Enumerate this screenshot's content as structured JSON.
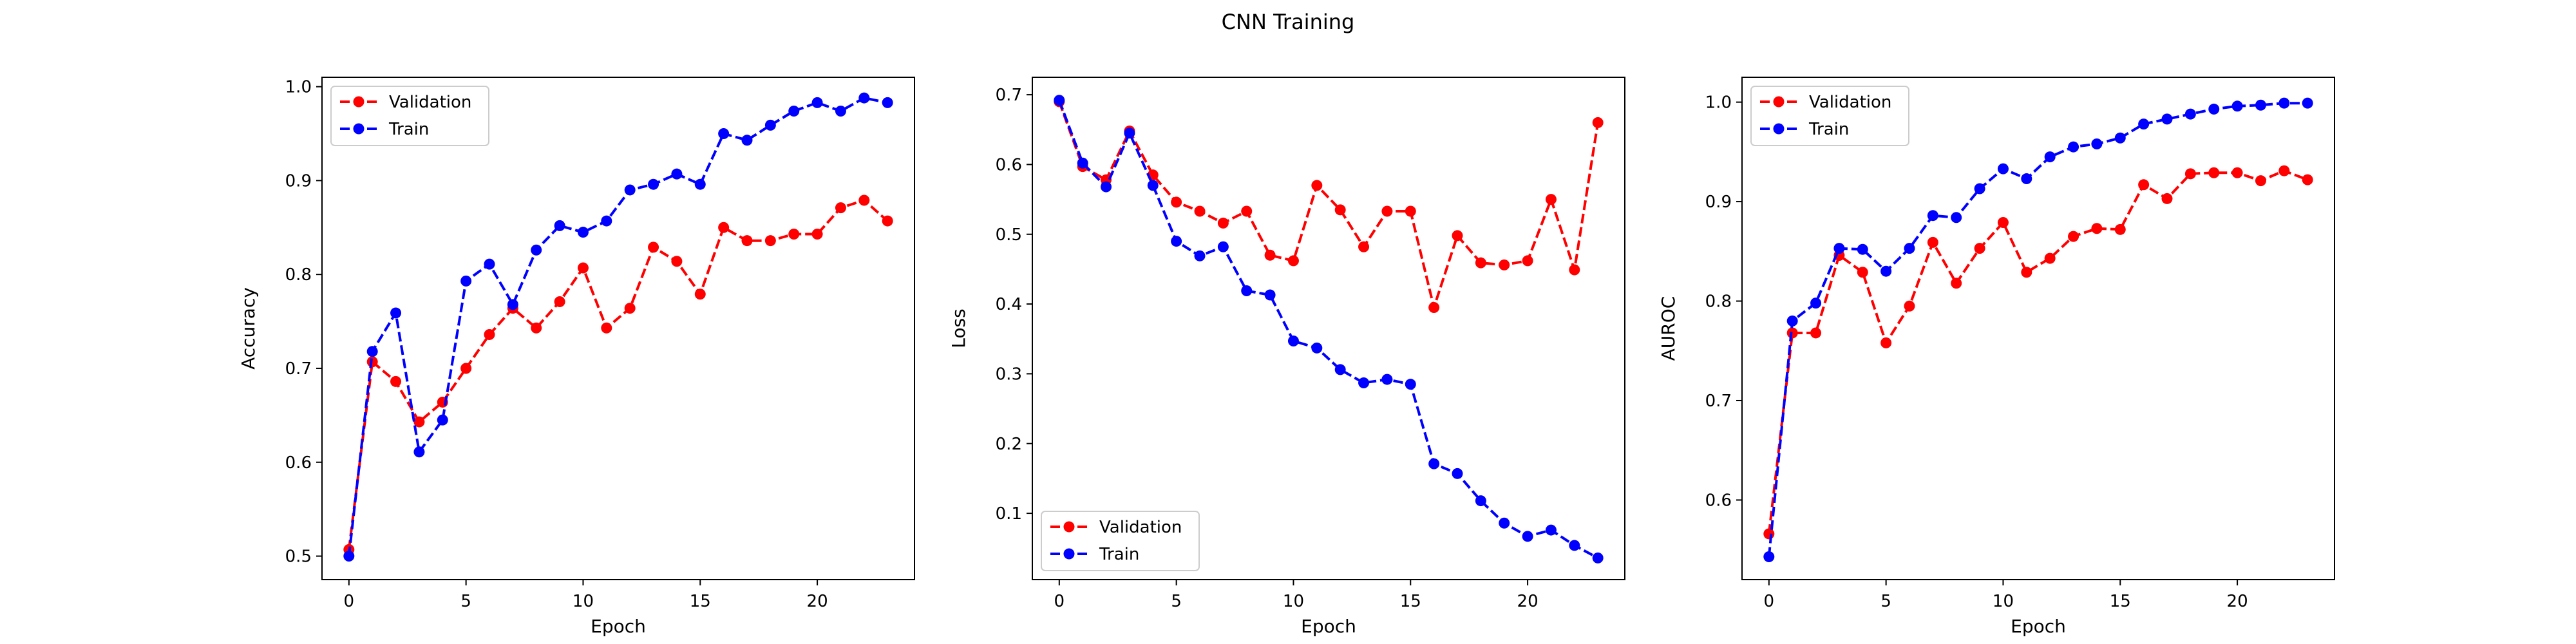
{
  "figure": {
    "title": "CNN Training"
  },
  "chart_data": [
    {
      "type": "line",
      "xlabel": "Epoch",
      "ylabel": "Accuracy",
      "xlim": [
        -1.15,
        24.15
      ],
      "ylim": [
        0.475,
        1.01
      ],
      "xticks": [
        0,
        5,
        10,
        15,
        20
      ],
      "yticks": [
        0.5,
        0.6,
        0.7,
        0.8,
        0.9,
        1.0
      ],
      "ytick_labels": [
        "0.5",
        "0.6",
        "0.7",
        "0.8",
        "0.9",
        "1.0"
      ],
      "grid": false,
      "legend": "upper left",
      "x": [
        0,
        1,
        2,
        3,
        4,
        5,
        6,
        7,
        8,
        9,
        10,
        11,
        12,
        13,
        14,
        15,
        16,
        17,
        18,
        19,
        20,
        21,
        22,
        23
      ],
      "series": [
        {
          "name": "Validation",
          "color": "#ff0000",
          "values": [
            0.507,
            0.707,
            0.686,
            0.643,
            0.664,
            0.7,
            0.736,
            0.764,
            0.743,
            0.771,
            0.807,
            0.743,
            0.764,
            0.829,
            0.814,
            0.779,
            0.85,
            0.836,
            0.836,
            0.843,
            0.843,
            0.871,
            0.879,
            0.857
          ]
        },
        {
          "name": "Train",
          "color": "#0000ff",
          "values": [
            0.5,
            0.718,
            0.759,
            0.611,
            0.645,
            0.793,
            0.811,
            0.768,
            0.826,
            0.852,
            0.845,
            0.857,
            0.89,
            0.896,
            0.907,
            0.896,
            0.95,
            0.943,
            0.959,
            0.974,
            0.983,
            0.974,
            0.988,
            0.983
          ]
        }
      ]
    },
    {
      "type": "line",
      "xlabel": "Epoch",
      "ylabel": "Loss",
      "xlim": [
        -1.15,
        24.15
      ],
      "ylim": [
        0.005,
        0.725
      ],
      "xticks": [
        0,
        5,
        10,
        15,
        20
      ],
      "yticks": [
        0.1,
        0.2,
        0.3,
        0.4,
        0.5,
        0.6,
        0.7
      ],
      "ytick_labels": [
        "0.1",
        "0.2",
        "0.3",
        "0.4",
        "0.5",
        "0.6",
        "0.7"
      ],
      "grid": false,
      "legend": "lower left",
      "x": [
        0,
        1,
        2,
        3,
        4,
        5,
        6,
        7,
        8,
        9,
        10,
        11,
        12,
        13,
        14,
        15,
        16,
        17,
        18,
        19,
        20,
        21,
        22,
        23
      ],
      "series": [
        {
          "name": "Validation",
          "color": "#ff0000",
          "values": [
            0.69,
            0.597,
            0.578,
            0.648,
            0.585,
            0.546,
            0.533,
            0.516,
            0.533,
            0.47,
            0.462,
            0.57,
            0.535,
            0.482,
            0.533,
            0.533,
            0.395,
            0.498,
            0.459,
            0.456,
            0.462,
            0.55,
            0.449,
            0.66
          ]
        },
        {
          "name": "Train",
          "color": "#0000ff",
          "values": [
            0.692,
            0.602,
            0.568,
            0.645,
            0.57,
            0.49,
            0.469,
            0.482,
            0.419,
            0.413,
            0.347,
            0.337,
            0.306,
            0.287,
            0.292,
            0.285,
            0.171,
            0.157,
            0.118,
            0.086,
            0.067,
            0.076,
            0.054,
            0.036
          ]
        }
      ]
    },
    {
      "type": "line",
      "xlabel": "Epoch",
      "ylabel": "AUROC",
      "xlim": [
        -1.15,
        24.15
      ],
      "ylim": [
        0.52,
        1.025
      ],
      "xticks": [
        0,
        5,
        10,
        15,
        20
      ],
      "yticks": [
        0.6,
        0.7,
        0.8,
        0.9,
        1.0
      ],
      "ytick_labels": [
        "0.6",
        "0.7",
        "0.8",
        "0.9",
        "1.0"
      ],
      "grid": false,
      "legend": "upper left",
      "x": [
        0,
        1,
        2,
        3,
        4,
        5,
        6,
        7,
        8,
        9,
        10,
        11,
        12,
        13,
        14,
        15,
        16,
        17,
        18,
        19,
        20,
        21,
        22,
        23
      ],
      "series": [
        {
          "name": "Validation",
          "color": "#ff0000",
          "values": [
            0.566,
            0.768,
            0.768,
            0.846,
            0.829,
            0.758,
            0.795,
            0.859,
            0.818,
            0.853,
            0.879,
            0.829,
            0.843,
            0.865,
            0.873,
            0.872,
            0.917,
            0.903,
            0.928,
            0.929,
            0.929,
            0.921,
            0.931,
            0.922
          ]
        },
        {
          "name": "Train",
          "color": "#0000ff",
          "values": [
            0.543,
            0.78,
            0.798,
            0.853,
            0.852,
            0.83,
            0.853,
            0.886,
            0.884,
            0.913,
            0.933,
            0.923,
            0.945,
            0.955,
            0.958,
            0.964,
            0.978,
            0.983,
            0.988,
            0.993,
            0.996,
            0.997,
            0.999,
            0.999
          ]
        }
      ]
    }
  ]
}
